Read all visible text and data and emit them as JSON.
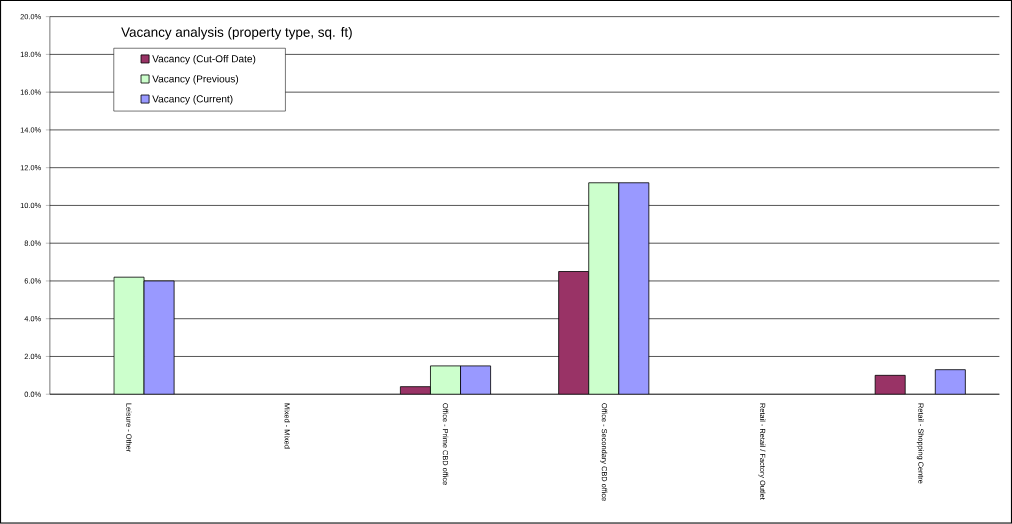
{
  "chart_data": {
    "type": "bar",
    "title": "Vacancy analysis (property type, sq. ft)",
    "categories": [
      "Leisure - Other",
      "Mixed - Mixed",
      "Office - Prime CBD office",
      "Office - Secondary CBD office",
      "Retail - Retail / Factory Outlet",
      "Retail - Shopping Centre"
    ],
    "series": [
      {
        "name": "Vacancy (Cut-Off Date)",
        "color": "#993366",
        "values": [
          null,
          null,
          0.4,
          6.5,
          null,
          1.0
        ]
      },
      {
        "name": "Vacancy (Previous)",
        "color": "#ccffcc",
        "values": [
          6.2,
          null,
          1.5,
          11.2,
          null,
          null
        ]
      },
      {
        "name": "Vacancy (Current)",
        "color": "#9999ff",
        "values": [
          6.0,
          null,
          1.5,
          11.2,
          null,
          1.3
        ]
      }
    ],
    "ylim": [
      0,
      20
    ],
    "yticks": [
      {
        "value": 0,
        "label": "0.0%"
      },
      {
        "value": 2,
        "label": "2.0%"
      },
      {
        "value": 4,
        "label": "4.0%"
      },
      {
        "value": 6,
        "label": "6.0%"
      },
      {
        "value": 8,
        "label": "8.0%"
      },
      {
        "value": 10,
        "label": "10.0%"
      },
      {
        "value": 12,
        "label": "12.0%"
      },
      {
        "value": 14,
        "label": "14.0%"
      },
      {
        "value": 16,
        "label": "16.0%"
      },
      {
        "value": 18,
        "label": "18.0%"
      },
      {
        "value": 20,
        "label": "20.0%"
      }
    ],
    "grid": "y",
    "legend": "top left"
  }
}
